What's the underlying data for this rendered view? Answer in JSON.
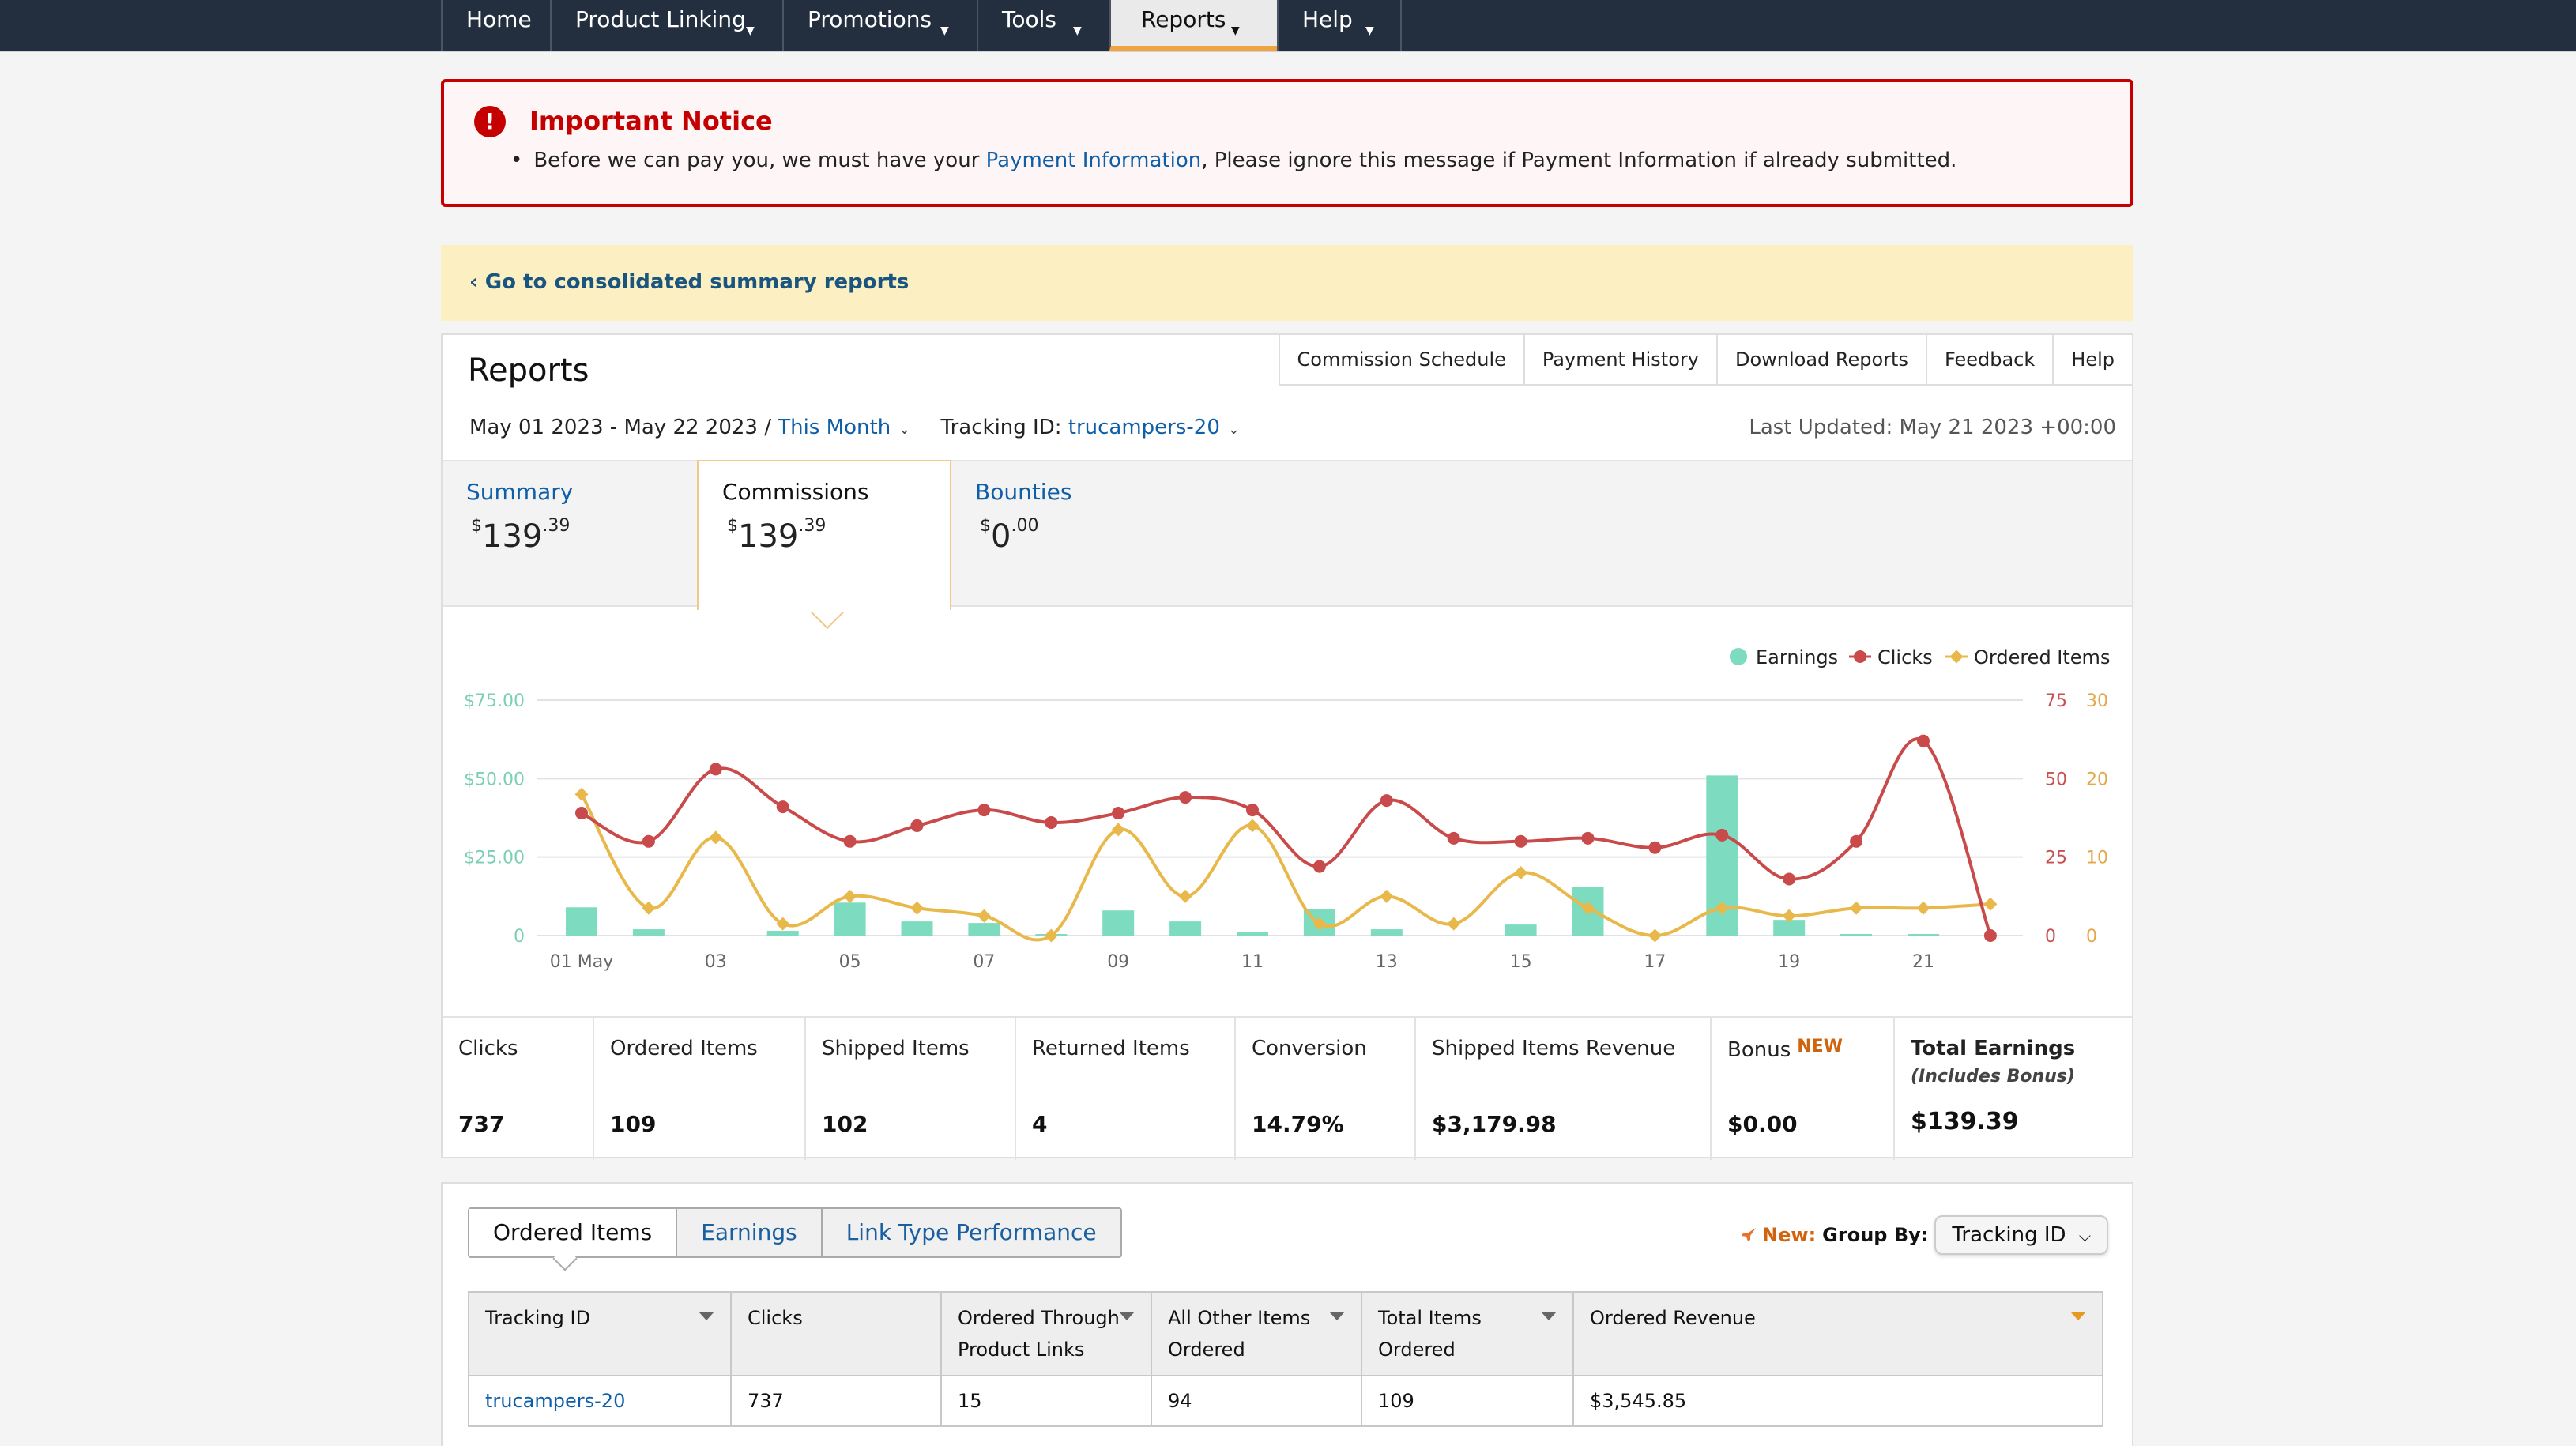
{
  "nav": {
    "items": [
      {
        "label": "Home",
        "caret": false
      },
      {
        "label": "Product Linking",
        "caret": true
      },
      {
        "label": "Promotions",
        "caret": true
      },
      {
        "label": "Tools",
        "caret": true
      },
      {
        "label": "Reports",
        "caret": true,
        "active": true
      },
      {
        "label": "Help",
        "caret": true
      }
    ]
  },
  "notice": {
    "title": "Important Notice",
    "text_before": "Before we can pay you, we must have your ",
    "link": "Payment Information",
    "text_after": ", Please ignore this message if Payment Information if already submitted."
  },
  "back_link": "‹ Go to consolidated summary reports",
  "reports": {
    "title": "Reports",
    "top_tabs": [
      "Commission Schedule",
      "Payment History",
      "Download Reports",
      "Feedback",
      "Help"
    ],
    "date_range": "May 01 2023 - May 22 2023 /",
    "period": "This Month",
    "tracking_label": "Tracking ID:",
    "tracking_value": "trucampers-20",
    "last_updated": "Last Updated: May 21 2023 +00:00",
    "summary_tabs": [
      {
        "label": "Summary",
        "currency": "$",
        "whole": "139",
        "cents": ".39"
      },
      {
        "label": "Commissions",
        "currency": "$",
        "whole": "139",
        "cents": ".39",
        "active": true
      },
      {
        "label": "Bounties",
        "currency": "$",
        "whole": "0",
        "cents": ".00"
      }
    ]
  },
  "chart_data": {
    "type": "bar",
    "legend": [
      "Earnings",
      "Clicks",
      "Ordered Items"
    ],
    "legend_position": "top-right",
    "colors": {
      "earnings": "#7ddcc0",
      "clicks": "#c94a4a",
      "ordered": "#e8b84a"
    },
    "x_tick_labels": [
      "01 May",
      "03",
      "05",
      "07",
      "09",
      "11",
      "13",
      "15",
      "17",
      "19",
      "21"
    ],
    "x": [
      "01",
      "02",
      "03",
      "04",
      "05",
      "06",
      "07",
      "08",
      "09",
      "10",
      "11",
      "12",
      "13",
      "14",
      "15",
      "16",
      "17",
      "18",
      "19",
      "20",
      "21",
      "22"
    ],
    "y_left": {
      "ticks": [
        "0",
        "$25.00",
        "$50.00",
        "$75.00"
      ],
      "max": 75
    },
    "y_right_clicks": {
      "ticks": [
        "0",
        "25",
        "50",
        "75"
      ],
      "max": 75
    },
    "y_right_ordered": {
      "ticks": [
        "0",
        "10",
        "20",
        "30"
      ],
      "max": 30
    },
    "series": [
      {
        "name": "Earnings",
        "kind": "bar",
        "values": [
          9,
          2,
          0,
          1.5,
          10.5,
          4.5,
          4,
          0.5,
          8,
          4.5,
          1,
          8.5,
          2,
          0,
          3.5,
          15.5,
          0,
          51,
          5,
          0.5,
          0.5,
          0
        ]
      },
      {
        "name": "Clicks",
        "kind": "line",
        "values": [
          39,
          30,
          53,
          41,
          30,
          35,
          40,
          36,
          39,
          44,
          40,
          22,
          43,
          31,
          30,
          31,
          28,
          32,
          18,
          30,
          62,
          0
        ]
      },
      {
        "name": "Ordered Items",
        "kind": "line",
        "values": [
          18,
          3.5,
          12.5,
          1.5,
          5,
          3.5,
          2.5,
          0,
          13.5,
          5,
          14,
          1.5,
          5,
          1.5,
          8,
          3.5,
          0,
          3.5,
          2.5,
          3.5,
          3.5,
          4
        ]
      }
    ]
  },
  "stats": [
    {
      "label": "Clicks",
      "value": "737"
    },
    {
      "label": "Ordered Items",
      "value": "109"
    },
    {
      "label": "Shipped Items",
      "value": "102"
    },
    {
      "label": "Returned Items",
      "value": "4"
    },
    {
      "label": "Conversion",
      "value": "14.79%"
    },
    {
      "label": "Shipped Items Revenue",
      "value": "$3,179.98"
    },
    {
      "label": "Bonus",
      "badge": "NEW",
      "value": "$0.00"
    },
    {
      "label": "Total Earnings",
      "sub": "(Includes Bonus)",
      "value": "$139.39"
    }
  ],
  "bottom": {
    "tabs": [
      "Ordered Items",
      "Earnings",
      "Link Type Performance"
    ],
    "new_label": "New:",
    "group_by_label": "Group By:",
    "group_by_value": "Tracking ID",
    "columns": [
      {
        "label": "Tracking ID",
        "sort": true
      },
      {
        "label": "Clicks",
        "sort": false
      },
      {
        "label": "Ordered Through Product Links",
        "sort": true
      },
      {
        "label": "All Other Items Ordered",
        "sort": true
      },
      {
        "label": "Total Items Ordered",
        "sort": true
      },
      {
        "label": "Ordered Revenue",
        "sort": true,
        "active": true
      }
    ],
    "rows": [
      [
        "trucampers-20",
        "737",
        "15",
        "94",
        "109",
        "$3,545.85"
      ]
    ]
  }
}
